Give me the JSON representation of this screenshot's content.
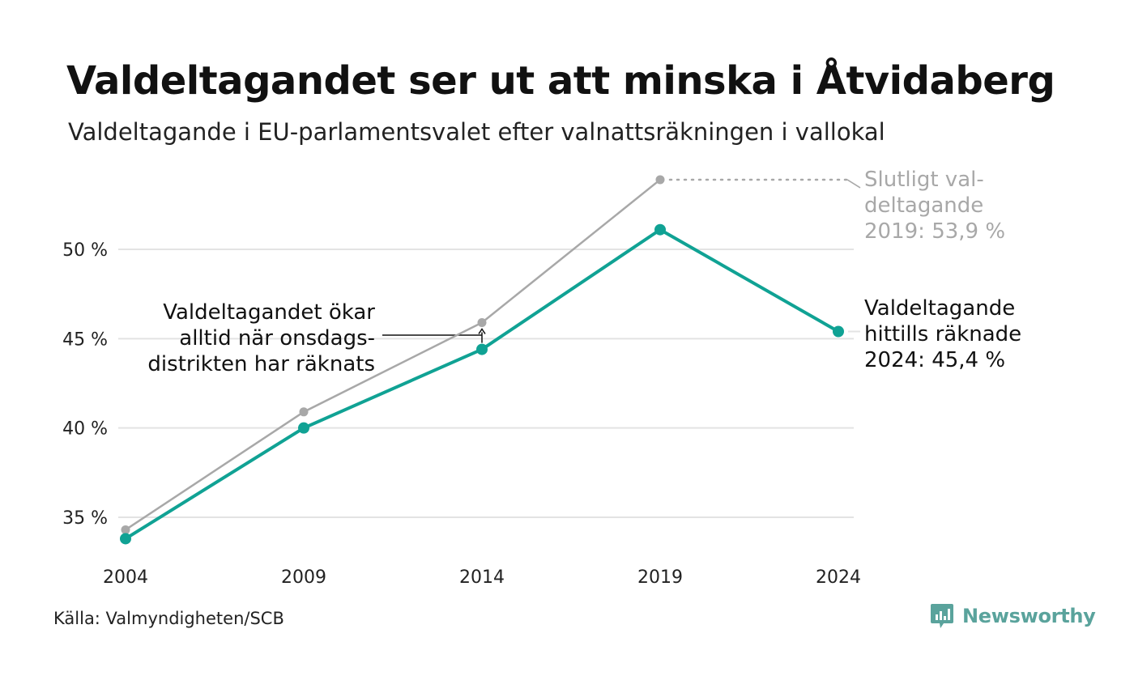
{
  "header": {
    "title": "Valdeltagandet ser ut att minska i Åtvidaberg",
    "subtitle": "Valdeltagande i EU-parlamentsvalet efter valnattsräkningen i vallokal"
  },
  "footer": {
    "source": "Källa: Valmyndigheten/SCB",
    "brand": "Newsworthy"
  },
  "colors": {
    "primary": "#10a294",
    "secondary": "#a8a8a8",
    "grid": "#e3e3e3",
    "brand": "#5aa39c"
  },
  "chart_data": {
    "type": "line",
    "x": [
      "2004",
      "2009",
      "2014",
      "2019",
      "2024"
    ],
    "series": [
      {
        "key": "final",
        "values": [
          34.3,
          40.9,
          45.9,
          53.9,
          null
        ]
      },
      {
        "key": "election_night",
        "values": [
          33.8,
          40.0,
          44.4,
          51.1,
          45.4
        ]
      }
    ],
    "yticks": [
      35,
      40,
      45,
      50
    ],
    "ytick_labels": [
      "35 %",
      "40 %",
      "45 %",
      "50 %"
    ],
    "ylim": [
      33,
      55
    ],
    "grid": true,
    "annotations": {
      "final_2019": [
        "Slutligt val-",
        "deltagande",
        "2019: 53,9 %"
      ],
      "counted_2024": [
        "Valdeltagande",
        "hittills räknade",
        "2024: 45,4 %"
      ],
      "wednesday": [
        "Valdeltagandet ökar",
        "alltid när onsdags-",
        "distrikten har räknats"
      ]
    }
  }
}
